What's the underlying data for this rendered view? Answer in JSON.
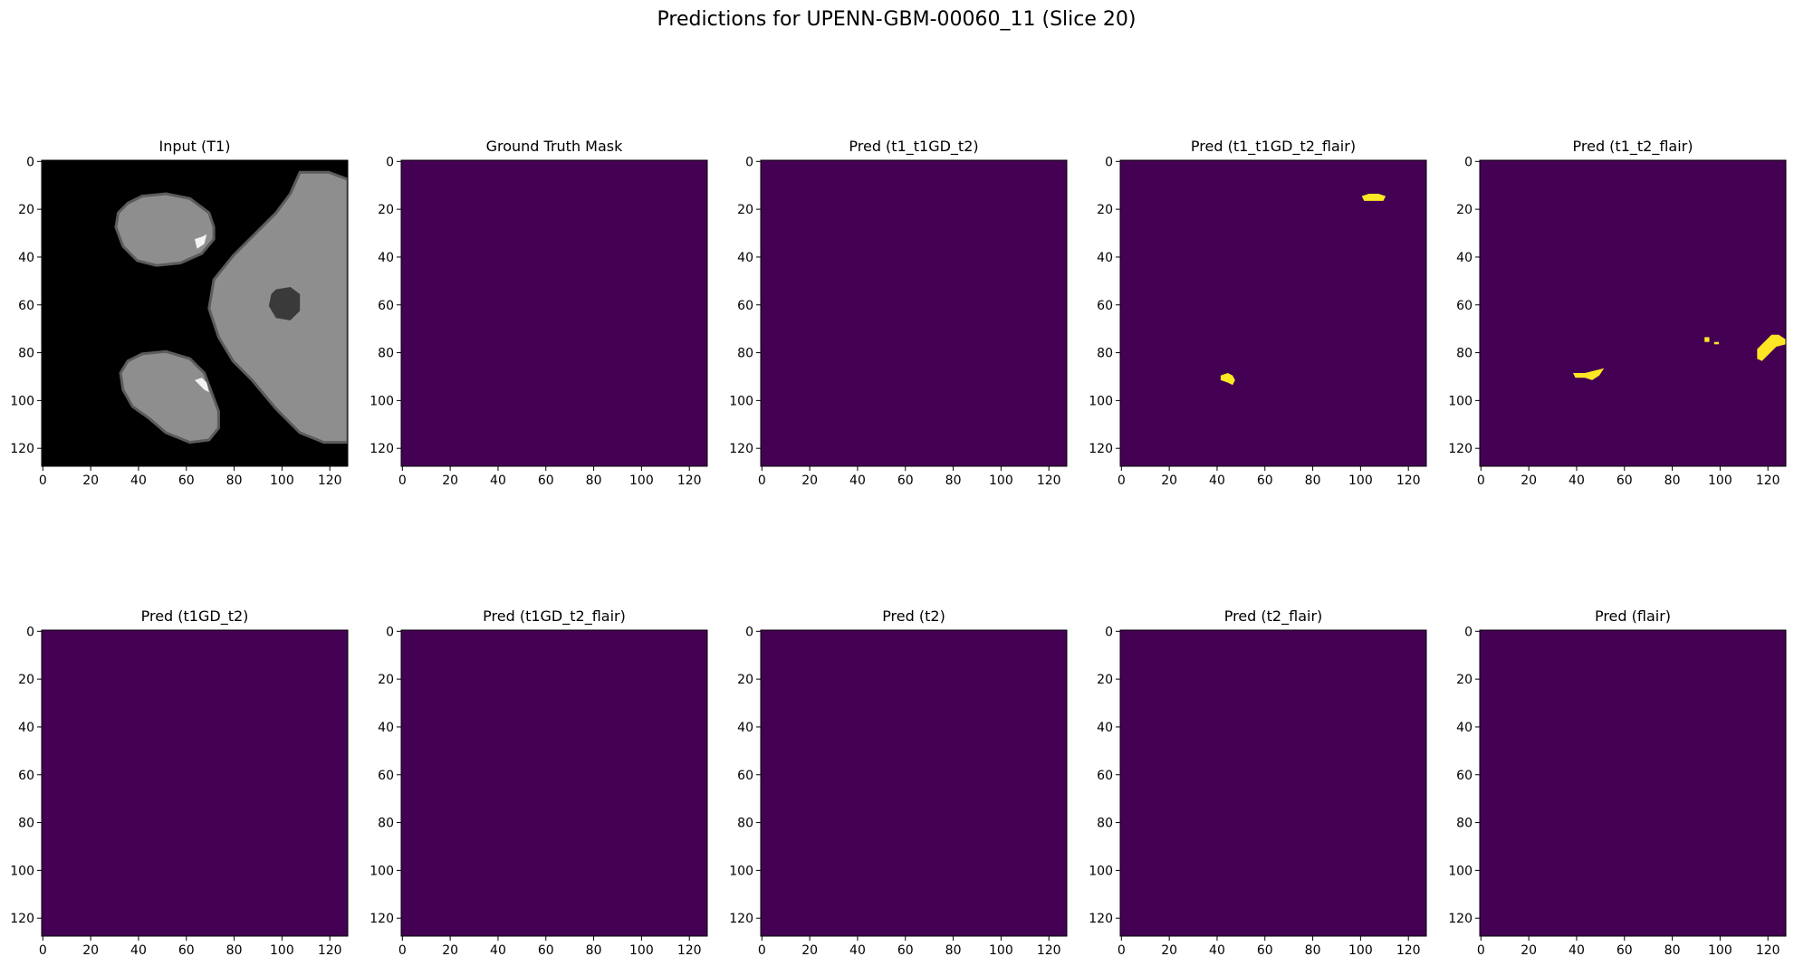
{
  "figure": {
    "title": "Predictions for UPENN-GBM-00060_11 (Slice 20)"
  },
  "colors": {
    "background_class": "#440154",
    "tumor_class": "#fde725",
    "mri_background": "#000000"
  },
  "chart_data": [
    {
      "type": "heatmap",
      "title": "Input (T1)",
      "colormap": "gray",
      "xlim": [
        0,
        127
      ],
      "ylim": [
        127,
        0
      ],
      "xticks": [
        0,
        20,
        40,
        60,
        80,
        100,
        120
      ],
      "yticks": [
        0,
        20,
        40,
        60,
        80,
        100,
        120
      ],
      "content": "grayscale MRI slice",
      "regions": [
        {
          "kind": "tissue",
          "polygon": [
            [
              36,
              18
            ],
            [
              42,
              15
            ],
            [
              52,
              14
            ],
            [
              62,
              16
            ],
            [
              70,
              22
            ],
            [
              72,
              28
            ],
            [
              72,
              33
            ],
            [
              67,
              39
            ],
            [
              58,
              43
            ],
            [
              48,
              44
            ],
            [
              40,
              42
            ],
            [
              34,
              36
            ],
            [
              31,
              28
            ],
            [
              32,
              22
            ]
          ]
        },
        {
          "kind": "tissue",
          "polygon": [
            [
              108,
              5
            ],
            [
              120,
              5
            ],
            [
              128,
              8
            ],
            [
              128,
              118
            ],
            [
              118,
              118
            ],
            [
              108,
              114
            ],
            [
              98,
              104
            ],
            [
              88,
              92
            ],
            [
              80,
              84
            ],
            [
              74,
              74
            ],
            [
              70,
              62
            ],
            [
              72,
              50
            ],
            [
              80,
              40
            ],
            [
              90,
              30
            ],
            [
              98,
              22
            ],
            [
              104,
              14
            ]
          ]
        },
        {
          "kind": "tissue",
          "polygon": [
            [
              36,
              84
            ],
            [
              42,
              81
            ],
            [
              52,
              80
            ],
            [
              62,
              83
            ],
            [
              68,
              89
            ],
            [
              71,
              97
            ],
            [
              74,
              105
            ],
            [
              74,
              112
            ],
            [
              70,
              117
            ],
            [
              62,
              118
            ],
            [
              52,
              114
            ],
            [
              45,
              108
            ],
            [
              38,
              103
            ],
            [
              34,
              96
            ],
            [
              33,
              89
            ]
          ]
        },
        {
          "kind": "bright",
          "polygon": [
            [
              64,
              33
            ],
            [
              67,
              32
            ],
            [
              69,
              31
            ],
            [
              68,
              35
            ],
            [
              65,
              37
            ]
          ]
        },
        {
          "kind": "bright",
          "polygon": [
            [
              64,
              92
            ],
            [
              67,
              91
            ],
            [
              69,
              93
            ],
            [
              70,
              97
            ],
            [
              68,
              96
            ]
          ]
        },
        {
          "kind": "dark",
          "polygon": [
            [
              98,
              54
            ],
            [
              104,
              53
            ],
            [
              108,
              56
            ],
            [
              108,
              63
            ],
            [
              104,
              67
            ],
            [
              98,
              66
            ],
            [
              95,
              61
            ],
            [
              96,
              56
            ]
          ]
        }
      ]
    },
    {
      "type": "heatmap",
      "title": "Ground Truth Mask",
      "colormap": "viridis",
      "xlim": [
        0,
        127
      ],
      "ylim": [
        127,
        0
      ],
      "xticks": [
        0,
        20,
        40,
        60,
        80,
        100,
        120
      ],
      "yticks": [
        0,
        20,
        40,
        60,
        80,
        100,
        120
      ],
      "positive_regions": []
    },
    {
      "type": "heatmap",
      "title": "Pred (t1_t1GD_t2)",
      "colormap": "viridis",
      "xlim": [
        0,
        127
      ],
      "ylim": [
        127,
        0
      ],
      "xticks": [
        0,
        20,
        40,
        60,
        80,
        100,
        120
      ],
      "yticks": [
        0,
        20,
        40,
        60,
        80,
        100,
        120
      ],
      "positive_regions": []
    },
    {
      "type": "heatmap",
      "title": "Pred (t1_t1GD_t2_flair)",
      "colormap": "viridis",
      "xlim": [
        0,
        127
      ],
      "ylim": [
        127,
        0
      ],
      "xticks": [
        0,
        20,
        40,
        60,
        80,
        100,
        120
      ],
      "yticks": [
        0,
        20,
        40,
        60,
        80,
        100,
        120
      ],
      "positive_regions": [
        [
          [
            101,
            15
          ],
          [
            104,
            14
          ],
          [
            108,
            14
          ],
          [
            111,
            15
          ],
          [
            110,
            17
          ],
          [
            106,
            17
          ],
          [
            102,
            17
          ]
        ],
        [
          [
            42,
            90
          ],
          [
            45,
            89
          ],
          [
            47,
            90
          ],
          [
            48,
            92
          ],
          [
            47,
            94
          ],
          [
            45,
            93
          ],
          [
            42,
            92
          ]
        ]
      ]
    },
    {
      "type": "heatmap",
      "title": "Pred (t1_t2_flair)",
      "colormap": "viridis",
      "xlim": [
        0,
        127
      ],
      "ylim": [
        127,
        0
      ],
      "xticks": [
        0,
        20,
        40,
        60,
        80,
        100,
        120
      ],
      "yticks": [
        0,
        20,
        40,
        60,
        80,
        100,
        120
      ],
      "positive_regions": [
        [
          [
            39,
            89
          ],
          [
            44,
            89
          ],
          [
            48,
            88
          ],
          [
            52,
            87
          ],
          [
            50,
            90
          ],
          [
            47,
            92
          ],
          [
            44,
            91
          ],
          [
            40,
            91
          ]
        ],
        [
          [
            94,
            74
          ],
          [
            96,
            74
          ],
          [
            96,
            76
          ],
          [
            94,
            76
          ]
        ],
        [
          [
            98,
            76
          ],
          [
            100,
            76
          ],
          [
            100,
            77
          ],
          [
            98,
            77
          ]
        ],
        [
          [
            116,
            79
          ],
          [
            119,
            76
          ],
          [
            122,
            73
          ],
          [
            125,
            73
          ],
          [
            128,
            75
          ],
          [
            128,
            77
          ],
          [
            124,
            78
          ],
          [
            121,
            81
          ],
          [
            118,
            84
          ],
          [
            116,
            83
          ]
        ]
      ]
    },
    {
      "type": "heatmap",
      "title": "Pred (t1GD_t2)",
      "colormap": "viridis",
      "xlim": [
        0,
        127
      ],
      "ylim": [
        127,
        0
      ],
      "xticks": [
        0,
        20,
        40,
        60,
        80,
        100,
        120
      ],
      "yticks": [
        0,
        20,
        40,
        60,
        80,
        100,
        120
      ],
      "positive_regions": []
    },
    {
      "type": "heatmap",
      "title": "Pred (t1GD_t2_flair)",
      "colormap": "viridis",
      "xlim": [
        0,
        127
      ],
      "ylim": [
        127,
        0
      ],
      "xticks": [
        0,
        20,
        40,
        60,
        80,
        100,
        120
      ],
      "yticks": [
        0,
        20,
        40,
        60,
        80,
        100,
        120
      ],
      "positive_regions": []
    },
    {
      "type": "heatmap",
      "title": "Pred (t2)",
      "colormap": "viridis",
      "xlim": [
        0,
        127
      ],
      "ylim": [
        127,
        0
      ],
      "xticks": [
        0,
        20,
        40,
        60,
        80,
        100,
        120
      ],
      "yticks": [
        0,
        20,
        40,
        60,
        80,
        100,
        120
      ],
      "positive_regions": []
    },
    {
      "type": "heatmap",
      "title": "Pred (t2_flair)",
      "colormap": "viridis",
      "xlim": [
        0,
        127
      ],
      "ylim": [
        127,
        0
      ],
      "xticks": [
        0,
        20,
        40,
        60,
        80,
        100,
        120
      ],
      "yticks": [
        0,
        20,
        40,
        60,
        80,
        100,
        120
      ],
      "positive_regions": []
    },
    {
      "type": "heatmap",
      "title": "Pred (flair)",
      "colormap": "viridis",
      "xlim": [
        0,
        127
      ],
      "ylim": [
        127,
        0
      ],
      "xticks": [
        0,
        20,
        40,
        60,
        80,
        100,
        120
      ],
      "yticks": [
        0,
        20,
        40,
        60,
        80,
        100,
        120
      ],
      "positive_regions": []
    }
  ]
}
